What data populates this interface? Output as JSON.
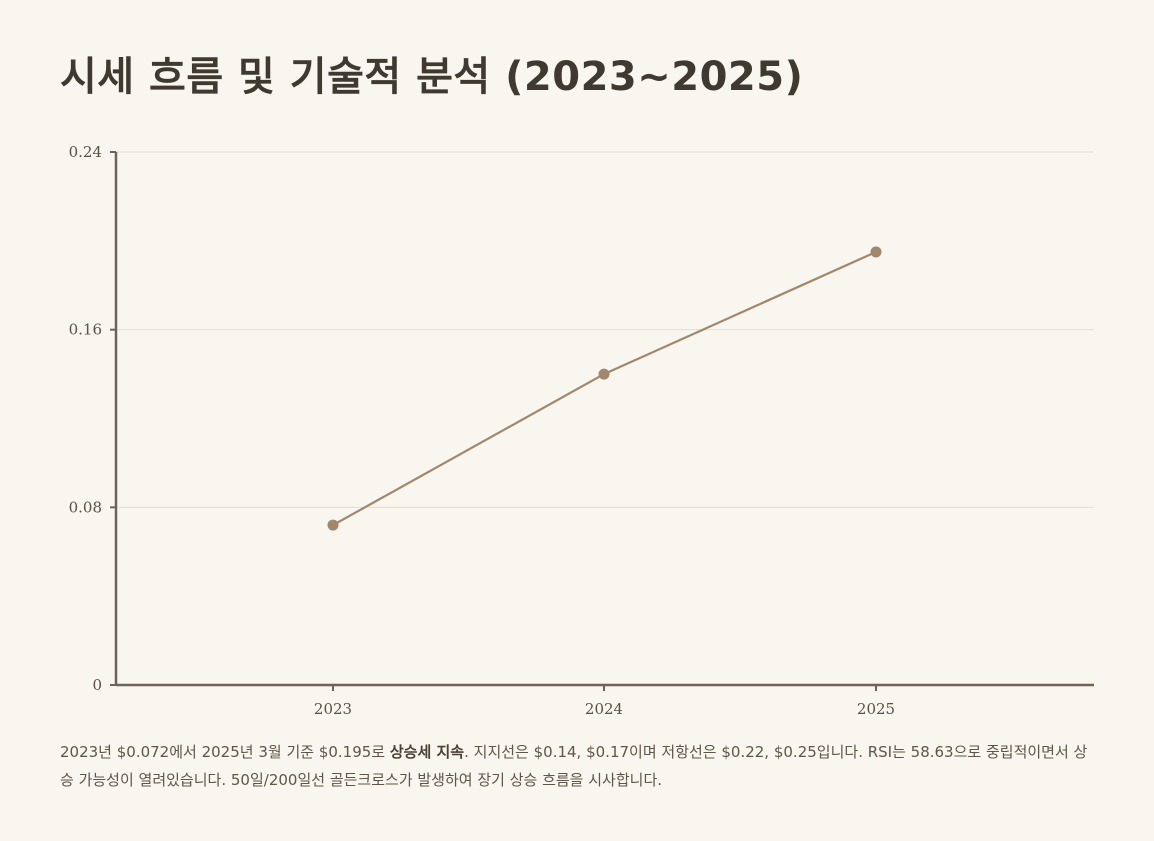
{
  "page": {
    "title": "시세 흐름 및 기술적 분석 (2023~2025)"
  },
  "colors": {
    "background": "#f9f5ef",
    "line": "#a3876c",
    "point": "#a3876c",
    "axis": "#6e6259",
    "grid": "#e3ddd3",
    "title": "#3f3931"
  },
  "chart_data": {
    "type": "line",
    "title": "",
    "xlabel": "",
    "ylabel": "",
    "x": [
      "2023",
      "2024",
      "2025"
    ],
    "series": [
      {
        "values": [
          0.072,
          0.14,
          0.195
        ]
      }
    ],
    "ylim": [
      0,
      0.24
    ],
    "yticks": [
      0,
      0.08,
      0.16,
      0.24
    ],
    "ytick_labels": [
      "0",
      "0.08",
      "0.16",
      "0.24"
    ],
    "grid": true,
    "legend": "none"
  },
  "description": {
    "part1": "2023년 $0.072에서 2025년 3월 기준 $0.195로 ",
    "highlight": "상승세 지속",
    "part2": ". 지지선은 $0.14, $0.17이며 저항선은 $0.22, $0.25입니다. RSI는 58.63으로 중립적이면서 상승 가능성이 열려있습니다. 50일/200일선 골든크로스가 발생하여 장기 상승 흐름을 시사합니다."
  }
}
